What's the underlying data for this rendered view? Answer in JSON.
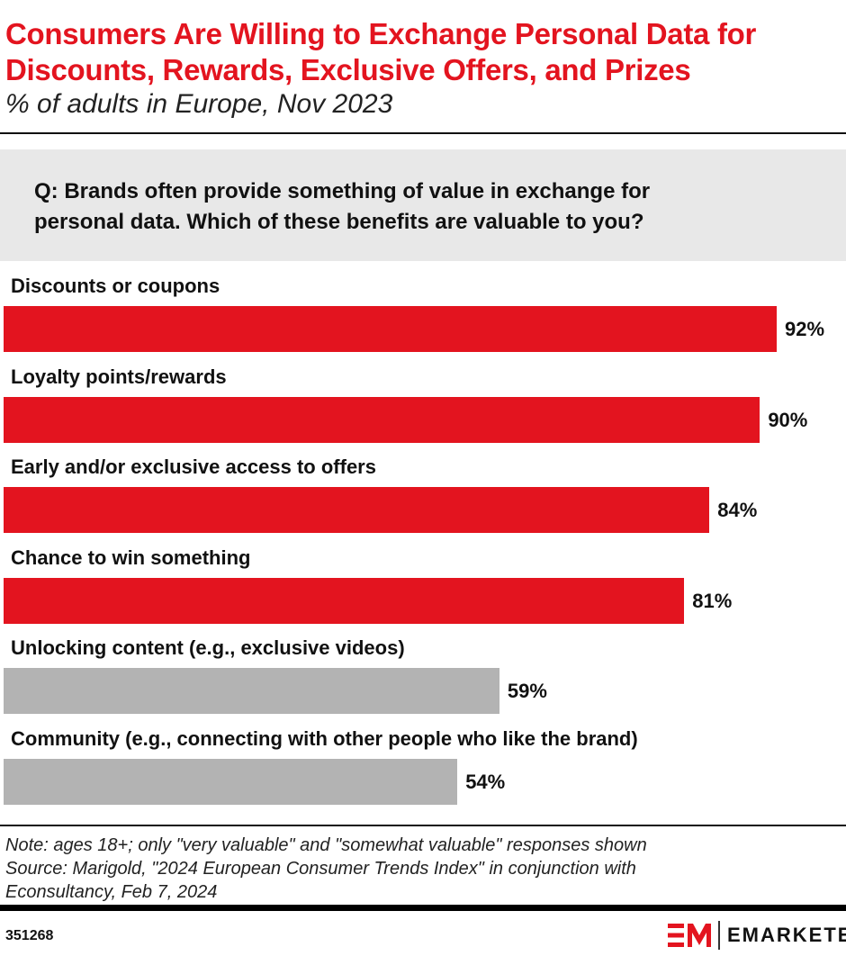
{
  "header": {
    "title_line1": "Consumers Are Willing to Exchange Personal Data for",
    "title_line2": "Discounts, Rewards, Exclusive Offers, and Prizes",
    "subtitle": "% of adults in Europe, Nov 2023"
  },
  "question": {
    "line1": "Q: Brands often provide something of value in exchange for",
    "line2": "personal data. Which of these benefits are valuable to you?"
  },
  "chart_data": {
    "type": "bar",
    "orientation": "horizontal",
    "categories": [
      "Discounts or coupons",
      "Loyalty points/rewards",
      "Early and/or exclusive access to offers",
      "Chance to win something",
      "Unlocking content (e.g., exclusive videos)",
      "Community (e.g., connecting with other people who like the brand)"
    ],
    "values": [
      92,
      90,
      84,
      81,
      59,
      54
    ],
    "value_labels": [
      "92%",
      "90%",
      "84%",
      "81%",
      "59%",
      "54%"
    ],
    "bar_colors": [
      "#e3141f",
      "#e3141f",
      "#e3141f",
      "#e3141f",
      "#b3b3b3",
      "#b3b3b3"
    ],
    "xlim": [
      0,
      100
    ],
    "grid": false
  },
  "footer": {
    "note": "Note: ages 18+; only \"very valuable\" and \"somewhat valuable\" responses shown",
    "source_line1": "Source: Marigold, \"2024 European Consumer Trends Index\" in conjunction with",
    "source_line2": "Econsultancy, Feb 7, 2024",
    "id": "351268",
    "brand": "EMARKETER"
  }
}
